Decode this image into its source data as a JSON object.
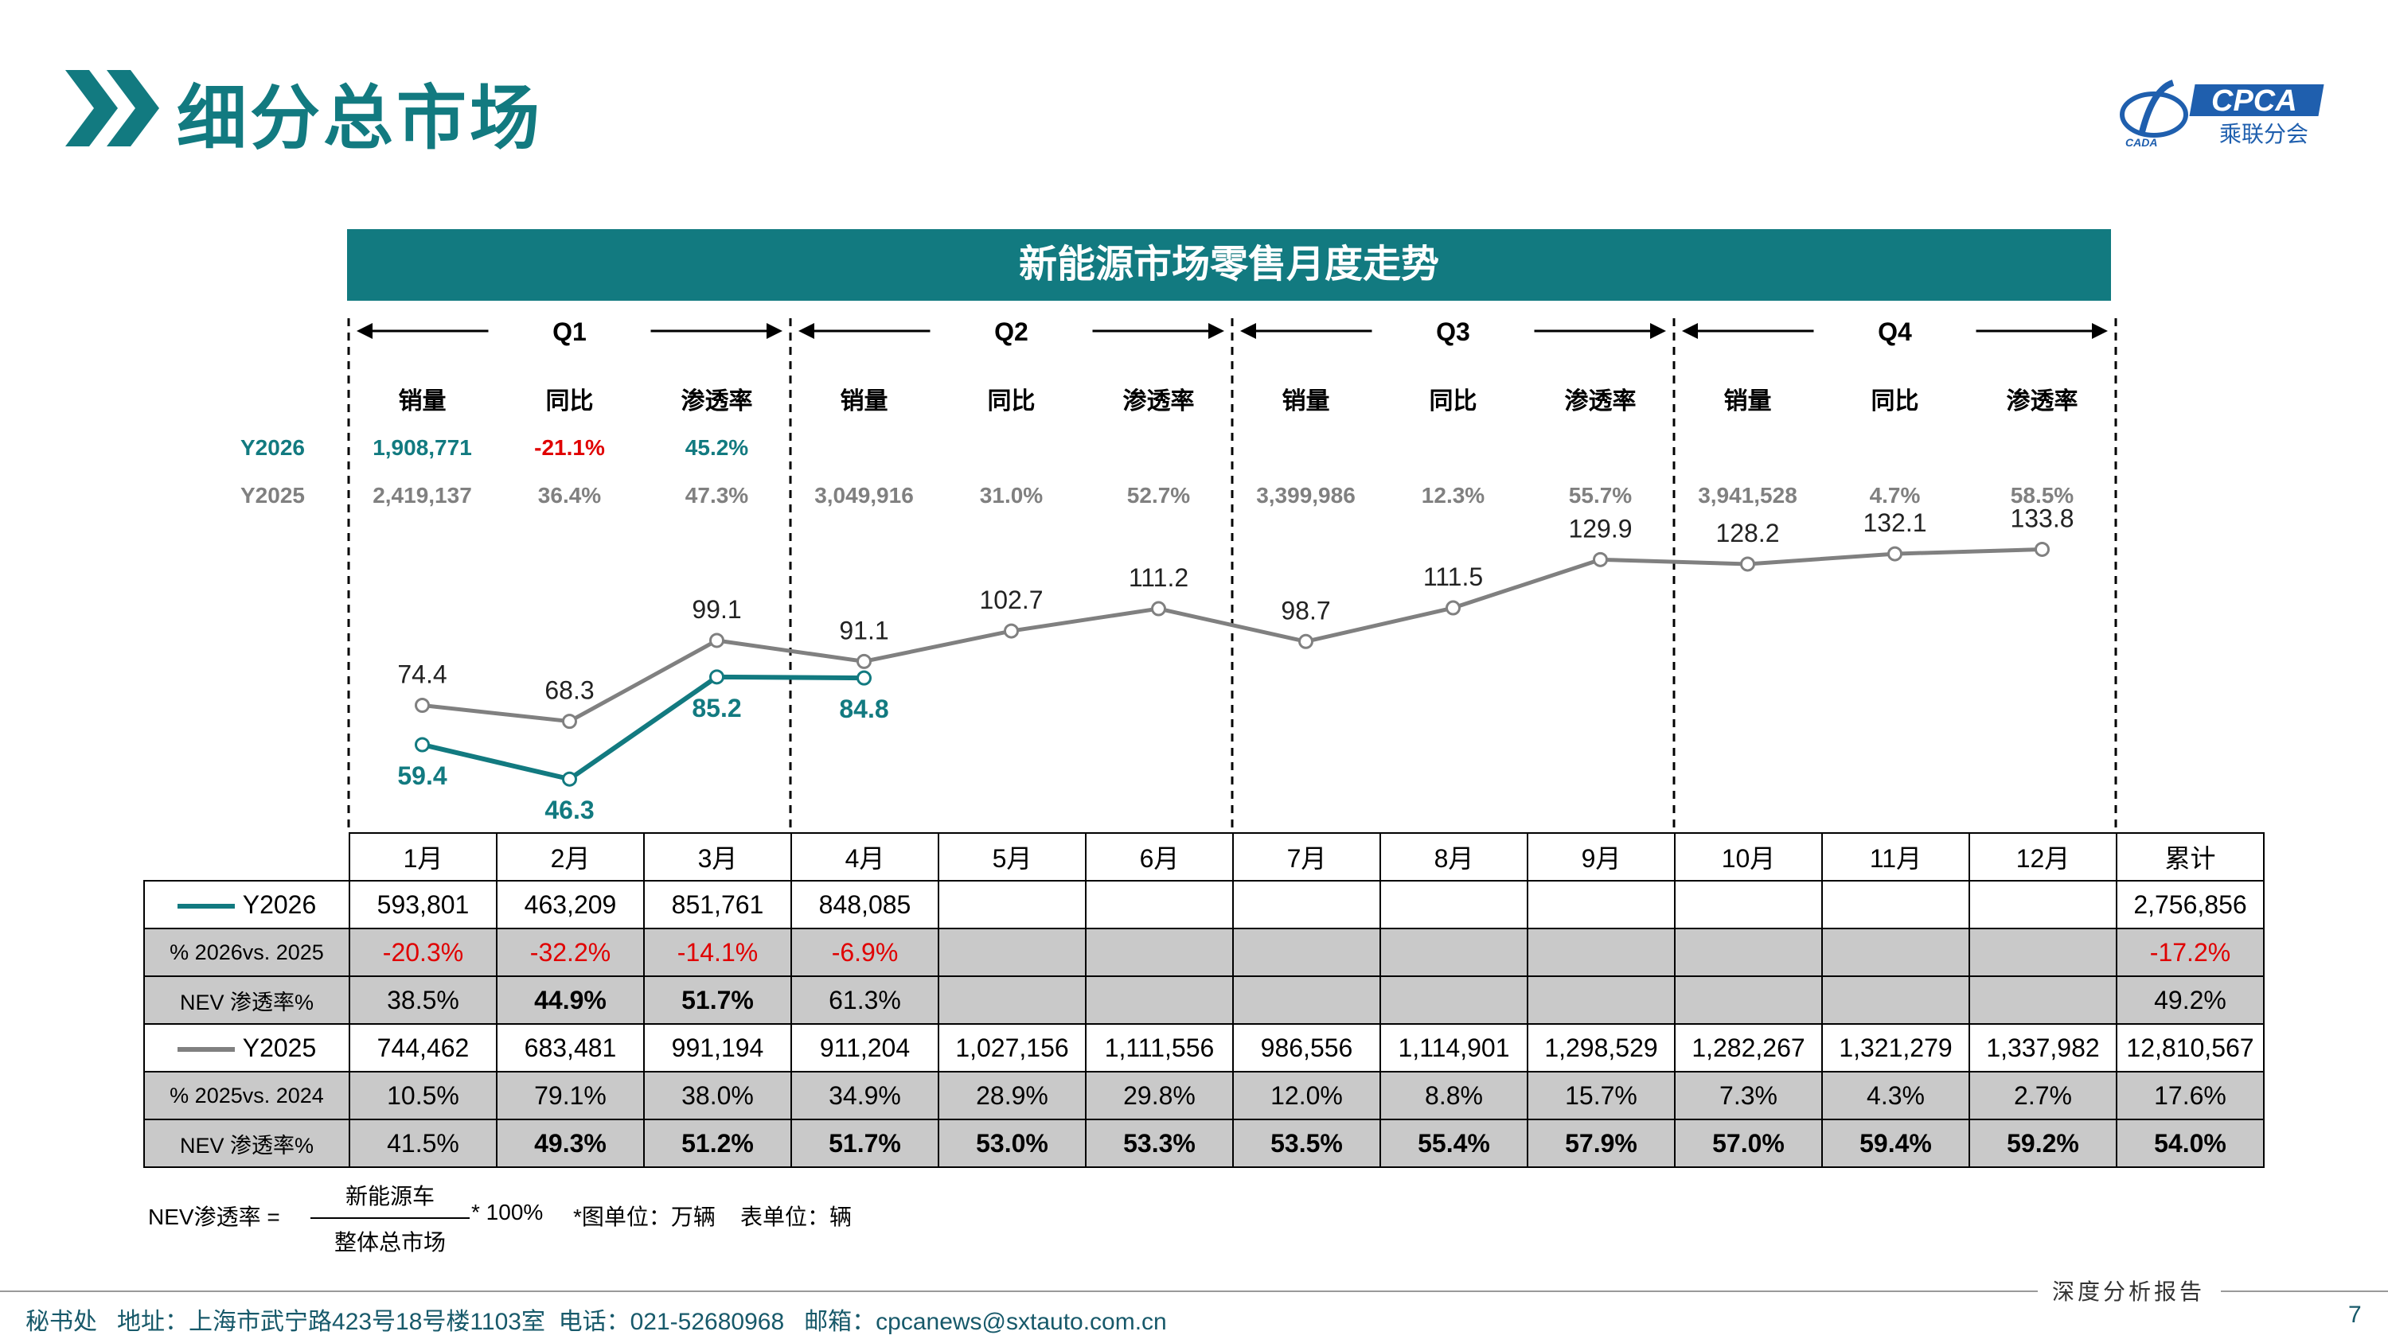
{
  "header": {
    "title": "细分总市场",
    "logo_text": "CPCA",
    "logo_subtext": "乘联分会",
    "logo_small": "CADA"
  },
  "banner": {
    "title": "新能源市场零售月度走势"
  },
  "quarters": [
    {
      "label": "Q1",
      "cols": [
        "销量",
        "同比",
        "渗透率"
      ],
      "y2026": [
        "1,908,771",
        "-21.1%",
        "45.2%"
      ],
      "y2025": [
        "2,419,137",
        "36.4%",
        "47.3%"
      ]
    },
    {
      "label": "Q2",
      "cols": [
        "销量",
        "同比",
        "渗透率"
      ],
      "y2026": [
        "",
        "",
        ""
      ],
      "y2025": [
        "3,049,916",
        "31.0%",
        "52.7%"
      ]
    },
    {
      "label": "Q3",
      "cols": [
        "销量",
        "同比",
        "渗透率"
      ],
      "y2026": [
        "",
        "",
        ""
      ],
      "y2025": [
        "3,399,986",
        "12.3%",
        "55.7%"
      ]
    },
    {
      "label": "Q4",
      "cols": [
        "销量",
        "同比",
        "渗透率"
      ],
      "y2026": [
        "",
        "",
        ""
      ],
      "y2025": [
        "3,941,528",
        "4.7%",
        "58.5%"
      ]
    }
  ],
  "quarter_row_labels": {
    "y2026": "Y2026",
    "y2025": "Y2025"
  },
  "chart_data": {
    "type": "line",
    "categories": [
      "1月",
      "2月",
      "3月",
      "4月",
      "5月",
      "6月",
      "7月",
      "8月",
      "9月",
      "10月",
      "11月",
      "12月"
    ],
    "series": [
      {
        "name": "Y2026",
        "values": [
          59.4,
          46.3,
          85.2,
          84.8,
          null,
          null,
          null,
          null,
          null,
          null,
          null,
          null
        ],
        "color": "#127a80"
      },
      {
        "name": "Y2025",
        "values": [
          74.4,
          68.3,
          99.1,
          91.1,
          102.7,
          111.2,
          98.7,
          111.5,
          129.9,
          128.2,
          132.1,
          133.8
        ],
        "color": "#808080"
      }
    ],
    "unit_note": "*图单位：万辆"
  },
  "table": {
    "months": [
      "1月",
      "2月",
      "3月",
      "4月",
      "5月",
      "6月",
      "7月",
      "8月",
      "9月",
      "10月",
      "11月",
      "12月"
    ],
    "total_label": "累计",
    "rows": [
      {
        "label": "Y2026",
        "legend": true,
        "color": "#127a80",
        "shade": false,
        "red": false,
        "bold_cols": [],
        "values": [
          "593,801",
          "463,209",
          "851,761",
          "848,085",
          "",
          "",
          "",
          "",
          "",
          "",
          "",
          ""
        ],
        "total": "2,756,856"
      },
      {
        "label": "% 2026vs. 2025",
        "legend": false,
        "shade": true,
        "red": true,
        "bold_cols": [],
        "values": [
          "-20.3%",
          "-32.2%",
          "-14.1%",
          "-6.9%",
          "",
          "",
          "",
          "",
          "",
          "",
          "",
          ""
        ],
        "total": "-17.2%"
      },
      {
        "label": "NEV 渗透率%",
        "legend": false,
        "shade": true,
        "red": false,
        "bold_cols": [
          2,
          3
        ],
        "values": [
          "38.5%",
          "44.9%",
          "51.7%",
          "61.3%",
          "",
          "",
          "",
          "",
          "",
          "",
          "",
          ""
        ],
        "total": "49.2%"
      },
      {
        "label": "Y2025",
        "legend": true,
        "color": "#808080",
        "shade": false,
        "red": false,
        "bold_cols": [],
        "values": [
          "744,462",
          "683,481",
          "991,194",
          "911,204",
          "1,027,156",
          "1,111,556",
          "986,556",
          "1,114,901",
          "1,298,529",
          "1,282,267",
          "1,321,279",
          "1,337,982"
        ],
        "total": "12,810,567"
      },
      {
        "label": "% 2025vs. 2024",
        "legend": false,
        "shade": true,
        "red": false,
        "bold_cols": [],
        "values": [
          "10.5%",
          "79.1%",
          "38.0%",
          "34.9%",
          "28.9%",
          "29.8%",
          "12.0%",
          "8.8%",
          "15.7%",
          "7.3%",
          "4.3%",
          "2.7%"
        ],
        "total": "17.6%"
      },
      {
        "label": "NEV 渗透率%",
        "legend": false,
        "shade": true,
        "red": false,
        "bold_cols": [
          2,
          3,
          4,
          5,
          6,
          7,
          8,
          9,
          10,
          11,
          12
        ],
        "values": [
          "41.5%",
          "49.3%",
          "51.2%",
          "51.7%",
          "53.0%",
          "53.3%",
          "53.5%",
          "55.4%",
          "57.9%",
          "57.0%",
          "59.4%",
          "59.2%"
        ],
        "total": "54.0%"
      }
    ]
  },
  "footnote": {
    "prefix": "NEV渗透率 =",
    "numerator": "新能源车",
    "denominator": "整体总市场",
    "multiplier": "* 100%",
    "units": "*图单位：万辆    表单位：辆"
  },
  "footer": {
    "report_label": "深度分析报告",
    "address": "秘书处   地址：上海市武宁路423号18号楼1103室  电话：021-52680968   邮箱：cpcanews@sxtauto.com.cn",
    "page": "7"
  },
  "colors": {
    "accent": "#127a80",
    "gray_series": "#808080",
    "red": "#e00000",
    "shade": "#c9c9c9"
  }
}
